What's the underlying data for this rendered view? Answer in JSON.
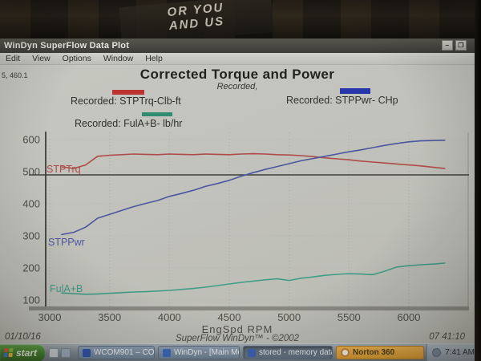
{
  "photo_top": {
    "sign_line1": "OR YOU",
    "sign_line2": "AND US"
  },
  "window": {
    "title": "WinDyn SuperFlow Data Plot",
    "minimize_glyph": "–",
    "restore_glyph": "❐"
  },
  "menu": {
    "items": [
      "Edit",
      "View",
      "Options",
      "Window",
      "Help"
    ]
  },
  "readout": "5, 460.1",
  "chart": {
    "title": "Corrected Torque and Power",
    "subtitle": "Recorded,",
    "legends": [
      {
        "label": "Recorded: STPTrq-Clb-ft",
        "color": "#c03030"
      },
      {
        "label": "Recorded: STPPwr- CHp",
        "color": "#2433b2"
      },
      {
        "label": "Recorded: FulA+B- lb/hr",
        "color": "#2d8f72"
      }
    ],
    "xlabel": "EngSpd RPM",
    "footer": {
      "date": "01/10/16",
      "center": "SuperFlow WinDyn™ - ©2002",
      "time": "07 41:10"
    }
  },
  "chart_data": {
    "type": "line",
    "title": "Corrected Torque and Power",
    "subtitle": "Recorded,",
    "xlabel": "EngSpd RPM",
    "x_ticks": [
      3000,
      3500,
      4000,
      4500,
      5000,
      5500,
      6000
    ],
    "y_ticks": [
      100,
      200,
      300,
      400,
      500,
      600
    ],
    "xlim": [
      3000,
      6500
    ],
    "ylim": [
      75,
      615
    ],
    "grid": true,
    "reference_line_y": 490,
    "x": [
      3100,
      3200,
      3300,
      3400,
      3500,
      3600,
      3700,
      3800,
      3900,
      4000,
      4100,
      4200,
      4300,
      4400,
      4500,
      4600,
      4700,
      4800,
      4900,
      5000,
      5100,
      5200,
      5300,
      5400,
      5500,
      5600,
      5700,
      5800,
      5900,
      6000,
      6100,
      6200,
      6300
    ],
    "series": [
      {
        "name": "STPTrq",
        "unit": "Clb-ft",
        "curve_label": "STPTrq",
        "color": "#b14a4a",
        "values": [
          515,
          510,
          521,
          548,
          551,
          553,
          555,
          554,
          553,
          555,
          554,
          553,
          555,
          554,
          553,
          555,
          556,
          555,
          553,
          552,
          550,
          547,
          543,
          540,
          537,
          533,
          530,
          527,
          524,
          521,
          518,
          514,
          510
        ]
      },
      {
        "name": "STPPwr",
        "unit": "CHp",
        "curve_label": "STPPwr",
        "color": "#4a55a5",
        "values": [
          304,
          311,
          327,
          355,
          367,
          379,
          391,
          401,
          410,
          423,
          432,
          442,
          454,
          463,
          473,
          486,
          497,
          507,
          516,
          525,
          534,
          541,
          548,
          555,
          562,
          568,
          575,
          582,
          588,
          593,
          596,
          597,
          598
        ]
      },
      {
        "name": "FulA+B",
        "unit": "lb/hr",
        "curve_label": "FulA+B",
        "color": "#3fa08a",
        "values": [
          122,
          120,
          118,
          119,
          121,
          123,
          125,
          126,
          128,
          130,
          133,
          136,
          140,
          145,
          150,
          155,
          159,
          163,
          166,
          161,
          168,
          172,
          177,
          180,
          182,
          181,
          179,
          190,
          203,
          207,
          210,
          212,
          215
        ]
      }
    ]
  },
  "taskbar": {
    "start_label": "start",
    "buttons": [
      {
        "label": "WCOM901 – COMM...",
        "style": "normal",
        "icon_color": "#2a52b0"
      },
      {
        "label": "WinDyn - [Main Mo...",
        "style": "normal",
        "icon_color": "#3a66c0"
      },
      {
        "label": "stored - memory data",
        "style": "pressed",
        "icon_color": "#3a62b8"
      },
      {
        "label": "Norton 360",
        "style": "norton",
        "icon_color": "#f8f4ea"
      }
    ],
    "clock": "7:41 AM"
  }
}
